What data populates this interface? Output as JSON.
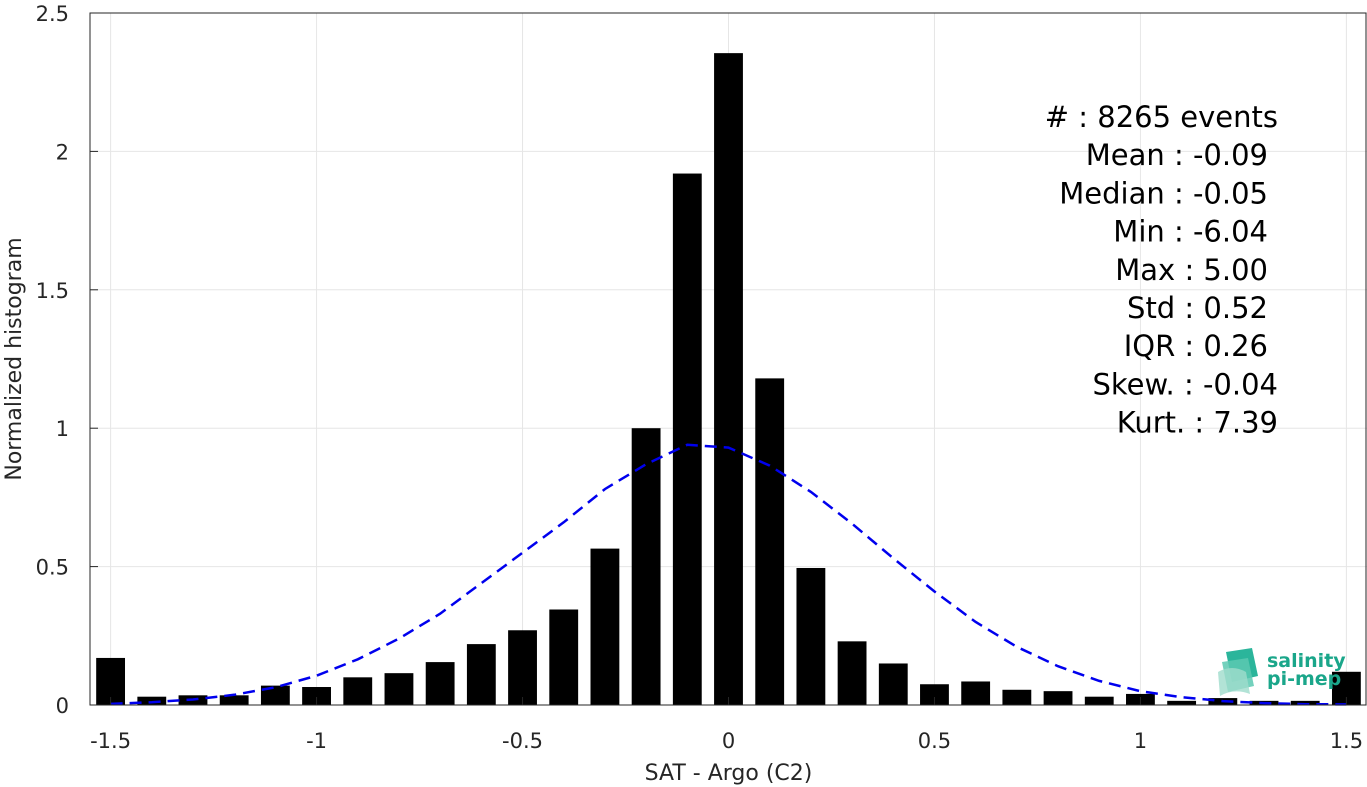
{
  "chart_data": {
    "type": "bar",
    "xlabel": "SAT - Argo (C2)",
    "ylabel": "Normalized histogram",
    "xlim": [
      -1.55,
      1.55
    ],
    "ylim": [
      0,
      2.5
    ],
    "xticks": [
      -1.5,
      -1,
      -0.5,
      0,
      0.5,
      1,
      1.5
    ],
    "xtick_labels": [
      "-1.5",
      "-1",
      "-0.5",
      "0",
      "0.5",
      "1",
      "1.5"
    ],
    "yticks": [
      0,
      0.5,
      1,
      1.5,
      2,
      2.5
    ],
    "ytick_labels": [
      "0",
      "0.5",
      "1",
      "1.5",
      "2",
      "2.5"
    ],
    "grid": true,
    "bar_width": 0.07,
    "series": [
      {
        "kind": "bar",
        "color": "#000000",
        "x": [
          -1.5,
          -1.4,
          -1.3,
          -1.2,
          -1.1,
          -1.0,
          -0.9,
          -0.8,
          -0.7,
          -0.6,
          -0.5,
          -0.4,
          -0.3,
          -0.2,
          -0.1,
          0.0,
          0.1,
          0.2,
          0.3,
          0.4,
          0.5,
          0.6,
          0.7,
          0.8,
          0.9,
          1.0,
          1.1,
          1.2,
          1.3,
          1.4,
          1.5
        ],
        "values": [
          0.17,
          0.03,
          0.035,
          0.035,
          0.07,
          0.065,
          0.1,
          0.115,
          0.155,
          0.22,
          0.27,
          0.345,
          0.565,
          1.0,
          1.92,
          2.355,
          1.18,
          0.495,
          0.23,
          0.15,
          0.075,
          0.085,
          0.055,
          0.05,
          0.03,
          0.04,
          0.015,
          0.025,
          0.015,
          0.015,
          0.12
        ]
      },
      {
        "kind": "line",
        "style": "dashed",
        "color": "#0000ee",
        "x": [
          -1.5,
          -1.4,
          -1.3,
          -1.2,
          -1.1,
          -1.0,
          -0.9,
          -0.8,
          -0.7,
          -0.6,
          -0.5,
          -0.4,
          -0.3,
          -0.2,
          -0.1,
          0.0,
          0.1,
          0.2,
          0.3,
          0.4,
          0.5,
          0.6,
          0.7,
          0.8,
          0.9,
          1.0,
          1.1,
          1.2,
          1.3,
          1.4,
          1.5
        ],
        "values": [
          0.004,
          0.01,
          0.02,
          0.037,
          0.064,
          0.106,
          0.165,
          0.24,
          0.33,
          0.44,
          0.55,
          0.66,
          0.78,
          0.87,
          0.94,
          0.93,
          0.865,
          0.77,
          0.655,
          0.53,
          0.41,
          0.3,
          0.21,
          0.14,
          0.087,
          0.05,
          0.028,
          0.014,
          0.007,
          0.003,
          0.002
        ]
      }
    ],
    "stats": [
      {
        "label": "#  : 8265 events"
      },
      {
        "label": "Mean : -0.09"
      },
      {
        "label": "Median : -0.05"
      },
      {
        "label": "Min : -6.04"
      },
      {
        "label": "Max : 5.00"
      },
      {
        "label": "Std : 0.52"
      },
      {
        "label": "IQR : 0.26"
      },
      {
        "label": "Skew. : -0.04"
      },
      {
        "label": "Kurt. : 7.39"
      }
    ]
  },
  "logo": {
    "line1": "salinity",
    "line2": "pi-mep",
    "color": "#1aa68a"
  }
}
